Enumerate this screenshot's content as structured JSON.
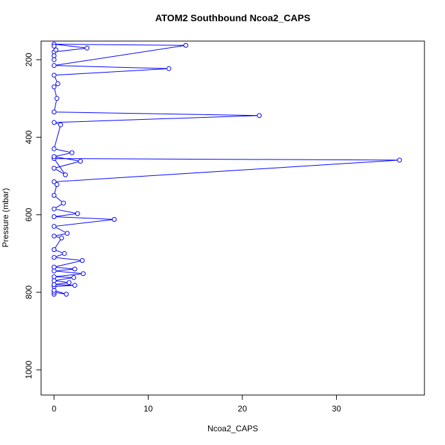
{
  "chart_data": {
    "type": "line",
    "title": "ATOM2 Southbound Ncoa2_CAPS",
    "x_label": "Ncoa2_CAPS",
    "y_label": "Pressure (mbar)",
    "invert_y": true,
    "markers": "open-circle",
    "xlim": [
      -1.38,
      39.35
    ],
    "xticks": [
      0,
      10,
      20,
      30
    ],
    "ylim": [
      152,
      1065
    ],
    "yticks": [
      200,
      400,
      600,
      800,
      1000
    ],
    "series": [
      {
        "color": "#0000ff",
        "x": [
          0,
          0,
          1.3,
          0,
          0,
          2.2,
          0,
          1.6,
          0,
          2.1,
          0,
          3.1,
          0,
          2.2,
          0,
          3.0,
          0,
          1.1,
          0,
          0.8,
          0,
          1.4,
          0,
          6.4,
          0,
          2.5,
          0,
          1.0,
          0,
          0.3,
          0,
          36.7,
          0,
          1.2,
          0,
          2.8,
          0,
          1.9,
          0,
          0.7,
          0,
          21.8,
          0,
          0.3,
          0,
          0.4,
          0,
          12.2,
          0,
          14,
          0,
          3.5,
          0,
          0,
          0,
          0.2,
          0
        ],
        "values": [
          805,
          800,
          805,
          795,
          785,
          782,
          780,
          775,
          770,
          762,
          760,
          752,
          745,
          740,
          735,
          718,
          710,
          700,
          690,
          660,
          655,
          648,
          630,
          612,
          605,
          597,
          585,
          570,
          550,
          522,
          515,
          459,
          455,
          497,
          480,
          462,
          450,
          440,
          430,
          368,
          362,
          344,
          335,
          300,
          270,
          262,
          240,
          223,
          215,
          163,
          160,
          170,
          180,
          200,
          190,
          175,
          165
        ]
      }
    ]
  }
}
